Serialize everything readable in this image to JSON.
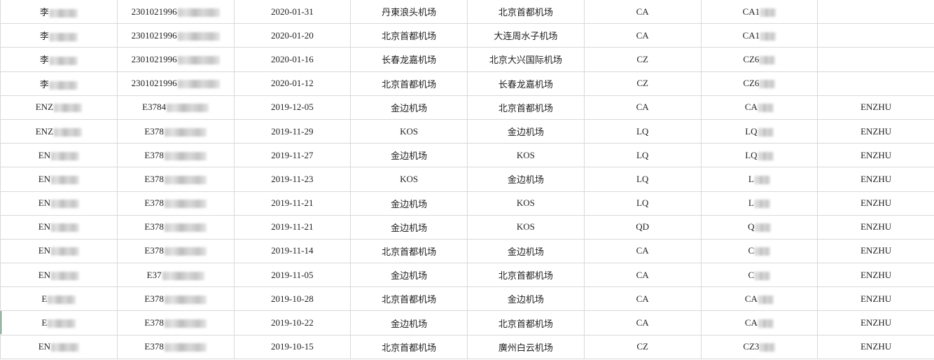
{
  "rows": [
    {
      "name": "李",
      "id": "2301021996",
      "date": "2020-01-31",
      "from": "丹東浪头机场",
      "to": "北京首都机场",
      "airline": "CA",
      "flight": "CA1",
      "pax": ""
    },
    {
      "name": "李",
      "id": "2301021996",
      "date": "2020-01-20",
      "from": "北京首都机场",
      "to": "大连周水子机场",
      "airline": "CA",
      "flight": "CA1",
      "pax": ""
    },
    {
      "name": "李",
      "id": "2301021996",
      "date": "2020-01-16",
      "from": "长春龙嘉机场",
      "to": "北京大兴国际机场",
      "airline": "CZ",
      "flight": "CZ6",
      "pax": ""
    },
    {
      "name": "李",
      "id": "2301021996",
      "date": "2020-01-12",
      "from": "北京首都机场",
      "to": "长春龙嘉机场",
      "airline": "CZ",
      "flight": "CZ6",
      "pax": ""
    },
    {
      "name": "ENZ",
      "id": "E3784",
      "date": "2019-12-05",
      "from": "金边机场",
      "to": "北京首都机场",
      "airline": "CA",
      "flight": "CA",
      "pax": "ENZHU"
    },
    {
      "name": "ENZ",
      "id": "E378",
      "date": "2019-11-29",
      "from": "KOS",
      "to": "金边机场",
      "airline": "LQ",
      "flight": "LQ",
      "pax": "ENZHU"
    },
    {
      "name": "EN",
      "id": "E378",
      "date": "2019-11-27",
      "from": "金边机场",
      "to": "KOS",
      "airline": "LQ",
      "flight": "LQ",
      "pax": "ENZHU"
    },
    {
      "name": "EN",
      "id": "E378",
      "date": "2019-11-23",
      "from": "KOS",
      "to": "金边机场",
      "airline": "LQ",
      "flight": "L",
      "pax": "ENZHU"
    },
    {
      "name": "EN",
      "id": "E378",
      "date": "2019-11-21",
      "from": "金边机场",
      "to": "KOS",
      "airline": "LQ",
      "flight": "L",
      "pax": "ENZHU"
    },
    {
      "name": "EN",
      "id": "E378",
      "date": "2019-11-21",
      "from": "金边机场",
      "to": "KOS",
      "airline": "QD",
      "flight": "Q",
      "pax": "ENZHU"
    },
    {
      "name": "EN",
      "id": "E378",
      "date": "2019-11-14",
      "from": "北京首都机场",
      "to": "金边机场",
      "airline": "CA",
      "flight": "C",
      "pax": "ENZHU"
    },
    {
      "name": "EN",
      "id": "E37",
      "date": "2019-11-05",
      "from": "金边机场",
      "to": "北京首都机场",
      "airline": "CA",
      "flight": "C",
      "pax": "ENZHU"
    },
    {
      "name": "E",
      "id": "E378",
      "date": "2019-10-28",
      "from": "北京首都机场",
      "to": "金边机场",
      "airline": "CA",
      "flight": "CA",
      "pax": "ENZHU"
    },
    {
      "name": "E",
      "id": "E378",
      "date": "2019-10-22",
      "from": "金边机场",
      "to": "北京首都机场",
      "airline": "CA",
      "flight": "CA",
      "pax": "ENZHU"
    },
    {
      "name": "EN",
      "id": "E378",
      "date": "2019-10-15",
      "from": "北京首都机场",
      "to": "廣州白云机场",
      "airline": "CZ",
      "flight": "CZ3",
      "pax": "ENZHU"
    }
  ]
}
